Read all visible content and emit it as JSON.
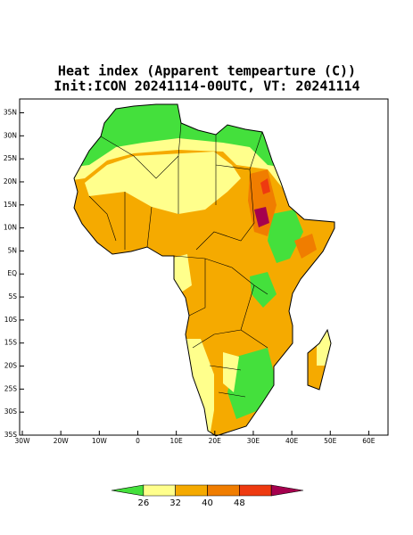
{
  "title": "Heat index (Apparent tempearture (C))",
  "subtitle": "Init:ICON 20241114-00UTC, VT: 20241114",
  "map": {
    "lon_range": [
      -30.7,
      65
    ],
    "lat_range": [
      -35,
      38
    ],
    "lon_ticks": [
      {
        "value": -30,
        "label": "30W"
      },
      {
        "value": -20,
        "label": "20W"
      },
      {
        "value": -10,
        "label": "10W"
      },
      0,
      {
        "value": 10,
        "label": "10E"
      },
      {
        "value": 20,
        "label": "20E"
      },
      {
        "value": 30,
        "label": "30E"
      },
      {
        "value": 40,
        "label": "40E"
      },
      {
        "value": 50,
        "label": "50E"
      },
      {
        "value": 60,
        "label": "60E"
      }
    ],
    "lat_ticks": [
      {
        "value": -35,
        "label": "35S"
      },
      {
        "value": -30,
        "label": "30S"
      },
      {
        "value": -25,
        "label": "25S"
      },
      {
        "value": -20,
        "label": "20S"
      },
      {
        "value": -15,
        "label": "15S"
      },
      {
        "value": -10,
        "label": "10S"
      },
      {
        "value": -5,
        "label": "5S"
      },
      {
        "value": 0,
        "label": "EQ"
      },
      {
        "value": 5,
        "label": "5N"
      },
      {
        "value": 10,
        "label": "10N"
      },
      {
        "value": 15,
        "label": "15N"
      },
      {
        "value": 20,
        "label": "20N"
      },
      {
        "value": 25,
        "label": "25N"
      },
      {
        "value": 30,
        "label": "30N"
      },
      {
        "value": 35,
        "label": "35N"
      }
    ]
  },
  "colorbar": {
    "levels": [
      26,
      32,
      40,
      48
    ],
    "colors": [
      "#44e03c",
      "#ffff8c",
      "#f5aa00",
      "#f07d00",
      "#ee3a10",
      "#a5004e"
    ]
  }
}
